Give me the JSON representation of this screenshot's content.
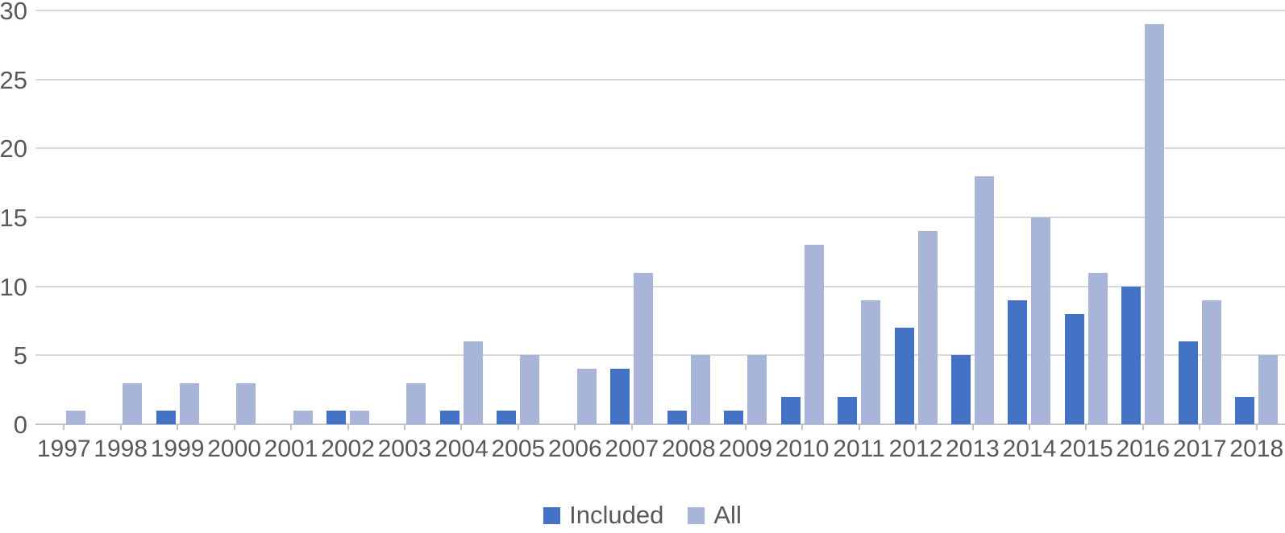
{
  "chart_data": {
    "type": "bar",
    "title": "",
    "xlabel": "",
    "ylabel": "",
    "categories": [
      "1997",
      "1998",
      "1999",
      "2000",
      "2001",
      "2002",
      "2003",
      "2004",
      "2005",
      "2006",
      "2007",
      "2008",
      "2009",
      "2010",
      "2011",
      "2012",
      "2013",
      "2014",
      "2015",
      "2016",
      "2017",
      "2018"
    ],
    "series": [
      {
        "name": "Included",
        "color": "#4472c4",
        "values": [
          0,
          0,
          1,
          0,
          0,
          1,
          0,
          1,
          1,
          0,
          4,
          1,
          1,
          2,
          2,
          7,
          5,
          9,
          8,
          10,
          6,
          2
        ]
      },
      {
        "name": "All",
        "color": "#a9b4d9",
        "values": [
          1,
          3,
          3,
          3,
          1,
          1,
          3,
          6,
          5,
          4,
          11,
          5,
          5,
          13,
          9,
          14,
          18,
          15,
          11,
          29,
          9,
          5
        ]
      }
    ],
    "ylim": [
      0,
      30
    ],
    "yticks": [
      0,
      5,
      10,
      15,
      20,
      25,
      30
    ],
    "grid": true,
    "legend_position": "bottom",
    "colors": {
      "gridline": "#d9d9d9",
      "axis": "#c3c3c3",
      "text": "#595959"
    }
  }
}
